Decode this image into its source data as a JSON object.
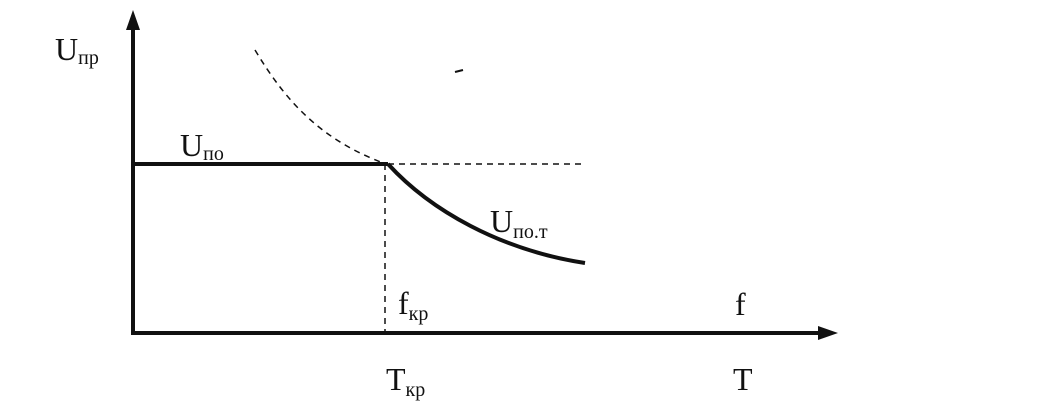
{
  "labels": {
    "y_axis": {
      "main": "U",
      "sub": "пр"
    },
    "flat_line": {
      "main": "U",
      "sub": "по"
    },
    "curve": {
      "main": "U",
      "sub": "по.т"
    },
    "critical_freq": {
      "main": "f",
      "sub": "кр"
    },
    "x_axis_upper": {
      "main": "f"
    },
    "critical_temp": {
      "main": "T",
      "sub": "кр"
    },
    "x_axis_lower": {
      "main": "T"
    }
  }
}
